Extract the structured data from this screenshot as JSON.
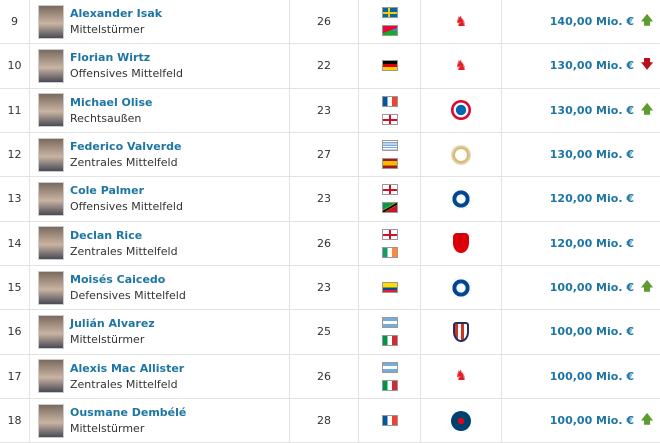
{
  "rows": [
    {
      "rank": "9",
      "name": "Alexander Isak",
      "position": "Mittelstürmer",
      "age": "26",
      "flags": [
        "SE",
        "ER"
      ],
      "club": "liverpool",
      "value": "140,00 Mio. €",
      "trend": "up"
    },
    {
      "rank": "10",
      "name": "Florian Wirtz",
      "position": "Offensives Mittelfeld",
      "age": "22",
      "flags": [
        "DE"
      ],
      "club": "liverpool",
      "value": "130,00 Mio. €",
      "trend": "down"
    },
    {
      "rank": "11",
      "name": "Michael Olise",
      "position": "Rechtsaußen",
      "age": "23",
      "flags": [
        "FR",
        "GB"
      ],
      "club": "bayern",
      "value": "130,00 Mio. €",
      "trend": "up"
    },
    {
      "rank": "12",
      "name": "Federico Valverde",
      "position": "Zentrales Mittelfeld",
      "age": "27",
      "flags": [
        "UY",
        "ES"
      ],
      "club": "real",
      "value": "130,00 Mio. €",
      "trend": ""
    },
    {
      "rank": "13",
      "name": "Cole Palmer",
      "position": "Offensives Mittelfeld",
      "age": "23",
      "flags": [
        "GB",
        "KN"
      ],
      "club": "chelsea",
      "value": "120,00 Mio. €",
      "trend": ""
    },
    {
      "rank": "14",
      "name": "Declan Rice",
      "position": "Zentrales Mittelfeld",
      "age": "26",
      "flags": [
        "GB",
        "IE"
      ],
      "club": "arsenal",
      "value": "120,00 Mio. €",
      "trend": ""
    },
    {
      "rank": "15",
      "name": "Moisés Caicedo",
      "position": "Defensives Mittelfeld",
      "age": "23",
      "flags": [
        "EC"
      ],
      "club": "chelsea",
      "value": "100,00 Mio. €",
      "trend": "up"
    },
    {
      "rank": "16",
      "name": "Julián Alvarez",
      "position": "Mittelstürmer",
      "age": "25",
      "flags": [
        "AR",
        "IT"
      ],
      "club": "atletico",
      "value": "100,00 Mio. €",
      "trend": ""
    },
    {
      "rank": "17",
      "name": "Alexis Mac Allister",
      "position": "Zentrales Mittelfeld",
      "age": "26",
      "flags": [
        "AR",
        "IT"
      ],
      "club": "liverpool",
      "value": "100,00 Mio. €",
      "trend": ""
    },
    {
      "rank": "18",
      "name": "Ousmane Dembélé",
      "position": "Mittelstürmer",
      "age": "28",
      "flags": [
        "FR"
      ],
      "club": "psg",
      "value": "100,00 Mio. €",
      "trend": "up"
    }
  ],
  "colors": {
    "link": "#1d75a3",
    "up": "#5d9c2f",
    "down": "#b6121b"
  }
}
